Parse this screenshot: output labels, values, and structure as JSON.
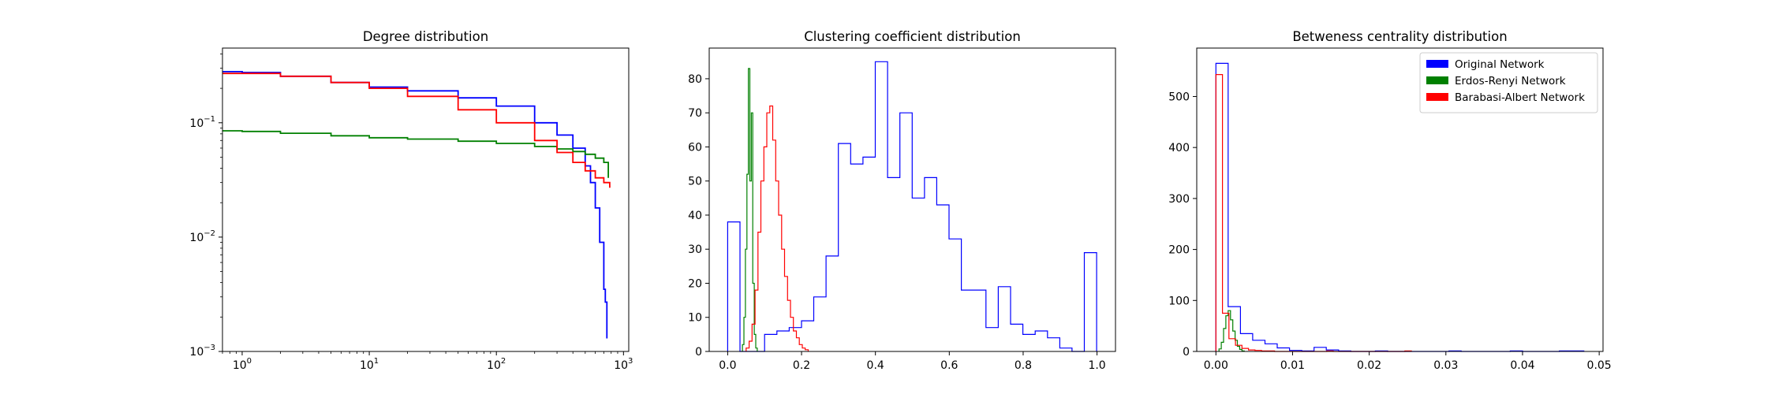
{
  "chart_data": [
    {
      "type": "line",
      "title": "Degree distribution",
      "xlabel": "",
      "ylabel": "",
      "xscale": "log",
      "yscale": "log",
      "xlim": [
        0.7,
        1100
      ],
      "ylim": [
        0.001,
        0.45
      ],
      "xticks": [
        {
          "value": 1,
          "label": "10^0"
        },
        {
          "value": 10,
          "label": "10^1"
        },
        {
          "value": 100,
          "label": "10^2"
        },
        {
          "value": 1000,
          "label": "10^3"
        }
      ],
      "yticks": [
        {
          "value": 0.001,
          "label": "10^−3"
        },
        {
          "value": 0.01,
          "label": "10^−2"
        },
        {
          "value": 0.1,
          "label": "10^−1"
        }
      ],
      "series": [
        {
          "color": "#0000ff",
          "x": [
            0.7,
            1,
            2,
            5,
            10,
            20,
            50,
            100,
            200,
            300,
            400,
            500,
            550,
            600,
            650,
            700,
            720,
            740
          ],
          "y": [
            0.28,
            0.275,
            0.255,
            0.225,
            0.205,
            0.19,
            0.165,
            0.14,
            0.1,
            0.078,
            0.06,
            0.042,
            0.03,
            0.018,
            0.009,
            0.0035,
            0.0027,
            0.0013
          ]
        },
        {
          "color": "#008000",
          "x": [
            0.7,
            1,
            2,
            5,
            10,
            20,
            50,
            100,
            200,
            300,
            400,
            500,
            600,
            700,
            760
          ],
          "y": [
            0.085,
            0.084,
            0.081,
            0.077,
            0.074,
            0.072,
            0.069,
            0.066,
            0.062,
            0.059,
            0.056,
            0.053,
            0.049,
            0.045,
            0.033
          ]
        },
        {
          "color": "#ff0000",
          "x": [
            0.7,
            1,
            2,
            5,
            10,
            20,
            50,
            100,
            200,
            300,
            400,
            500,
            600,
            700,
            780
          ],
          "y": [
            0.27,
            0.27,
            0.255,
            0.225,
            0.2,
            0.17,
            0.13,
            0.1,
            0.07,
            0.055,
            0.045,
            0.038,
            0.033,
            0.03,
            0.027
          ]
        }
      ]
    },
    {
      "type": "histogram",
      "title": "Clustering coefficient distribution",
      "xlabel": "",
      "ylabel": "",
      "xlim": [
        -0.05,
        1.05
      ],
      "ylim": [
        0,
        89
      ],
      "xticks": [
        {
          "value": 0,
          "label": "0.0"
        },
        {
          "value": 0.2,
          "label": "0.2"
        },
        {
          "value": 0.4,
          "label": "0.4"
        },
        {
          "value": 0.6,
          "label": "0.6"
        },
        {
          "value": 0.8,
          "label": "0.8"
        },
        {
          "value": 1.0,
          "label": "1.0"
        }
      ],
      "yticks": [
        {
          "value": 0,
          "label": "0"
        },
        {
          "value": 10,
          "label": "10"
        },
        {
          "value": 20,
          "label": "20"
        },
        {
          "value": 30,
          "label": "30"
        },
        {
          "value": 40,
          "label": "40"
        },
        {
          "value": 50,
          "label": "50"
        },
        {
          "value": 60,
          "label": "60"
        },
        {
          "value": 70,
          "label": "70"
        },
        {
          "value": 80,
          "label": "80"
        }
      ],
      "series": [
        {
          "color": "#0000ff",
          "bin_start": 0.0,
          "bin_width": 0.0333,
          "counts": [
            38,
            0,
            0,
            5,
            6,
            7,
            9,
            16,
            28,
            61,
            55,
            57,
            85,
            51,
            70,
            45,
            51,
            43,
            33,
            18,
            18,
            7,
            19,
            8,
            5,
            6,
            4,
            1,
            0,
            29
          ]
        },
        {
          "color": "#008000",
          "bin_start": 0.04,
          "bin_width": 0.004,
          "counts": [
            2,
            10,
            30,
            52,
            83,
            50,
            70,
            20,
            5,
            1
          ]
        },
        {
          "color": "#ff0000",
          "bin_start": 0.05,
          "bin_width": 0.008,
          "counts": [
            1,
            3,
            8,
            18,
            35,
            50,
            60,
            70,
            72,
            62,
            50,
            40,
            30,
            22,
            15,
            10,
            6,
            4,
            2,
            1,
            0.5
          ]
        }
      ]
    },
    {
      "type": "histogram",
      "title": "Betweness centrality distribution",
      "xlabel": "",
      "ylabel": "",
      "xlim": [
        -0.0025,
        0.0505
      ],
      "ylim": [
        0,
        595
      ],
      "xticks": [
        {
          "value": 0,
          "label": "0.00"
        },
        {
          "value": 0.01,
          "label": "0.01"
        },
        {
          "value": 0.02,
          "label": "0.02"
        },
        {
          "value": 0.03,
          "label": "0.03"
        },
        {
          "value": 0.04,
          "label": "0.04"
        },
        {
          "value": 0.05,
          "label": "0.05"
        }
      ],
      "yticks": [
        {
          "value": 0,
          "label": "0"
        },
        {
          "value": 100,
          "label": "100"
        },
        {
          "value": 200,
          "label": "200"
        },
        {
          "value": 300,
          "label": "300"
        },
        {
          "value": 400,
          "label": "400"
        },
        {
          "value": 500,
          "label": "500"
        }
      ],
      "legend": {
        "position": "upper right",
        "entries": [
          {
            "label": "Original Network",
            "color": "#0000ff"
          },
          {
            "label": "Erdos-Renyi Network",
            "color": "#008000"
          },
          {
            "label": "Barabasi-Albert Network",
            "color": "#ff0000"
          }
        ]
      },
      "series": [
        {
          "name": "Original Network",
          "color": "#0000ff",
          "bin_start": 0.0,
          "bin_width": 0.0016,
          "counts": [
            565,
            88,
            35,
            22,
            15,
            7,
            2,
            1,
            8,
            3,
            1,
            0,
            0,
            1,
            0,
            0,
            0,
            0,
            0,
            1,
            0,
            0,
            0,
            0,
            1,
            0,
            0,
            0,
            1,
            1
          ]
        },
        {
          "name": "Erdos-Renyi Network",
          "color": "#008000",
          "bin_start": 0.0004,
          "bin_width": 0.0003,
          "counts": [
            5,
            18,
            45,
            70,
            80,
            62,
            40,
            22,
            10,
            4,
            1
          ]
        },
        {
          "name": "Barabasi-Albert Network",
          "color": "#ff0000",
          "bin_start": 0.0,
          "bin_width": 0.00085,
          "counts": [
            543,
            75,
            25,
            12,
            6,
            3,
            2,
            1,
            1,
            0,
            0,
            0,
            0,
            0,
            0,
            0,
            0,
            1,
            0,
            0,
            0,
            0,
            0,
            0,
            0,
            0,
            0,
            0,
            0,
            1
          ]
        }
      ]
    }
  ]
}
